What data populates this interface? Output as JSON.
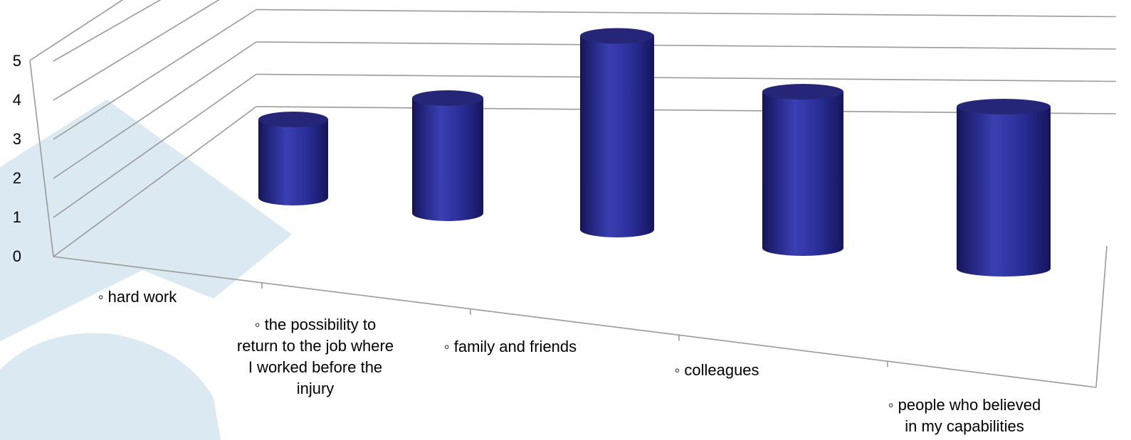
{
  "chart_data": {
    "type": "bar",
    "style": "3d-cylinder",
    "categories": [
      [
        "◦ hard work"
      ],
      [
        "◦ the possibility to",
        "return to the job where",
        "I worked before the",
        "injury"
      ],
      [
        "◦ family and friends"
      ],
      [
        "◦ colleagues"
      ],
      [
        "◦ people who believed",
        "in my capabilities"
      ]
    ],
    "values": [
      2,
      3,
      5,
      4,
      4
    ],
    "ylim": [
      0,
      5
    ],
    "yticks": [
      "0",
      "1",
      "2",
      "3",
      "4",
      "5"
    ],
    "grid": true,
    "legend": "none",
    "colors": {
      "bar_dark": "#1c1c6a",
      "bar_mid": "#3a3fb0",
      "bar_top": "#262678",
      "grid": "#9a9a9a",
      "watermark": "#dbe9f3"
    }
  }
}
